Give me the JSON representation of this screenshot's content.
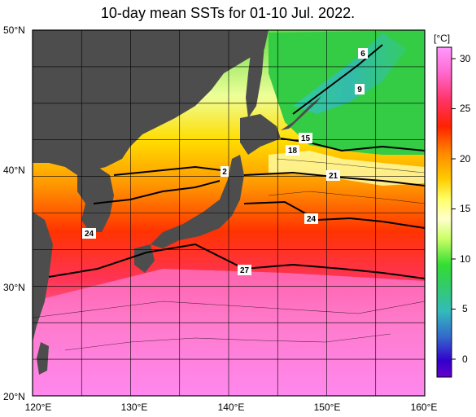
{
  "title": "10-day mean SSTs for 01-10 Jul. 2022.",
  "lat_labels": [
    "50°N",
    "40°N",
    "30°N",
    "20°N"
  ],
  "lon_labels": [
    "120°E",
    "130°E",
    "140°E",
    "150°E",
    "160°E"
  ],
  "colorbar": {
    "unit": "[°C]",
    "ticks": [
      "30",
      "25",
      "20",
      "15",
      "10",
      "5",
      "0"
    ]
  },
  "contour_labels": [
    "6",
    "9",
    "15",
    "18",
    "2",
    "21",
    "24",
    "24",
    "27"
  ],
  "colors": {
    "land": "#4d4d4d",
    "frame": "#000000"
  }
}
